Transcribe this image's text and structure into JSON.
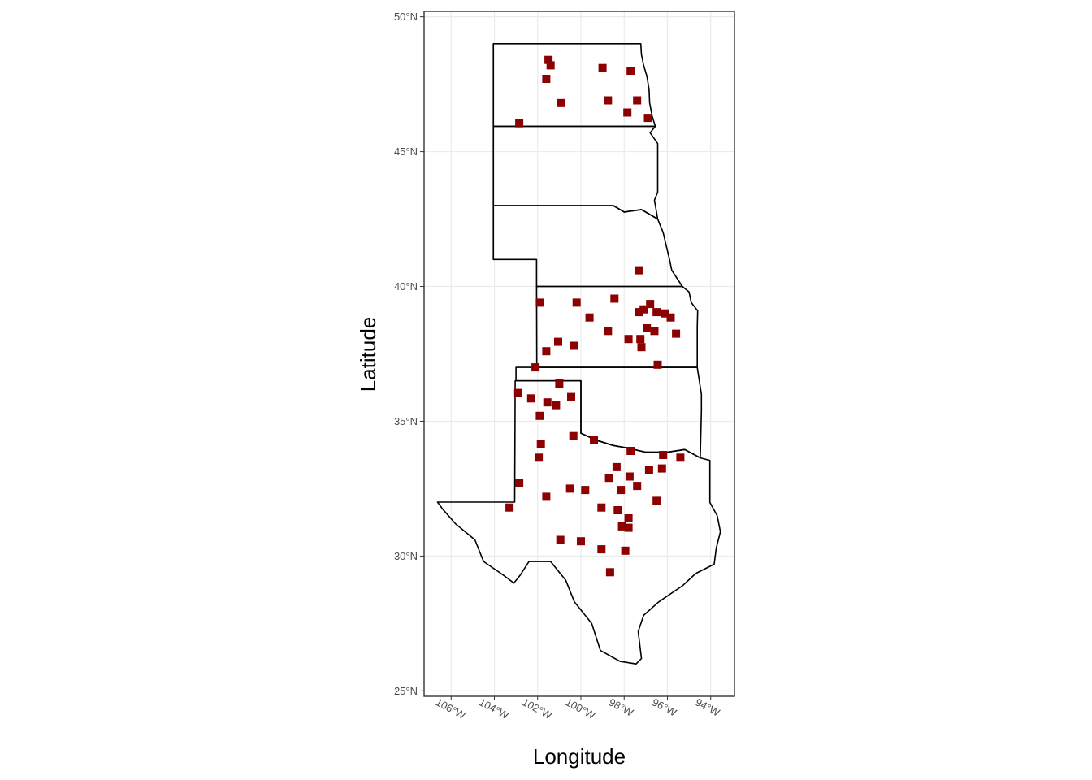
{
  "chart_data": {
    "type": "scatter",
    "xlabel": "Longitude",
    "ylabel": "Latitude",
    "xlim": [
      -107.25,
      -92.9
    ],
    "ylim": [
      24.8,
      50.2
    ],
    "grid": true,
    "x_ticks": [
      {
        "value": -106,
        "label": "106°W"
      },
      {
        "value": -104,
        "label": "104°W"
      },
      {
        "value": -102,
        "label": "102°W"
      },
      {
        "value": -100,
        "label": "100°W"
      },
      {
        "value": -98,
        "label": "98°W"
      },
      {
        "value": -96,
        "label": "96°W"
      },
      {
        "value": -94,
        "label": "94°W"
      }
    ],
    "y_ticks": [
      {
        "value": 25,
        "label": "25°N"
      },
      {
        "value": 30,
        "label": "30°N"
      },
      {
        "value": 35,
        "label": "35°N"
      },
      {
        "value": 40,
        "label": "40°N"
      },
      {
        "value": 45,
        "label": "45°N"
      },
      {
        "value": 50,
        "label": "50°N"
      }
    ],
    "marker": {
      "shape": "square",
      "color": "#8b0000"
    },
    "states": [
      {
        "name": "North Dakota",
        "coords": [
          [
            -104.05,
            49.0
          ],
          [
            -103.0,
            49.0
          ],
          [
            -101.0,
            49.0
          ],
          [
            -99.0,
            49.0
          ],
          [
            -97.23,
            49.0
          ],
          [
            -97.2,
            48.6
          ],
          [
            -97.1,
            48.2
          ],
          [
            -96.95,
            47.8
          ],
          [
            -96.85,
            47.3
          ],
          [
            -96.82,
            46.8
          ],
          [
            -96.7,
            46.3
          ],
          [
            -96.56,
            45.94
          ],
          [
            -98.5,
            45.94
          ],
          [
            -101.0,
            45.94
          ],
          [
            -104.05,
            45.94
          ],
          [
            -104.05,
            49.0
          ]
        ]
      },
      {
        "name": "South Dakota",
        "coords": [
          [
            -104.05,
            45.94
          ],
          [
            -101.0,
            45.94
          ],
          [
            -98.5,
            45.94
          ],
          [
            -96.56,
            45.94
          ],
          [
            -96.8,
            45.7
          ],
          [
            -96.45,
            45.3
          ],
          [
            -96.45,
            44.5
          ],
          [
            -96.45,
            43.5
          ],
          [
            -96.6,
            43.2
          ],
          [
            -96.45,
            42.5
          ],
          [
            -97.2,
            42.85
          ],
          [
            -98.0,
            42.76
          ],
          [
            -98.5,
            43.0
          ],
          [
            -104.05,
            43.0
          ],
          [
            -104.05,
            45.94
          ]
        ]
      },
      {
        "name": "Nebraska",
        "coords": [
          [
            -104.05,
            43.0
          ],
          [
            -98.5,
            43.0
          ],
          [
            -98.0,
            42.76
          ],
          [
            -97.2,
            42.85
          ],
          [
            -96.45,
            42.5
          ],
          [
            -96.2,
            42.0
          ],
          [
            -96.05,
            41.5
          ],
          [
            -95.9,
            41.0
          ],
          [
            -95.8,
            40.6
          ],
          [
            -95.31,
            40.0
          ],
          [
            -97.0,
            40.0
          ],
          [
            -102.05,
            40.0
          ],
          [
            -102.05,
            41.0
          ],
          [
            -104.05,
            41.0
          ],
          [
            -104.05,
            43.0
          ]
        ]
      },
      {
        "name": "Kansas",
        "coords": [
          [
            -102.05,
            40.0
          ],
          [
            -97.0,
            40.0
          ],
          [
            -95.31,
            40.0
          ],
          [
            -95.0,
            39.8
          ],
          [
            -94.9,
            39.4
          ],
          [
            -94.6,
            39.1
          ],
          [
            -94.62,
            38.5
          ],
          [
            -94.62,
            37.0
          ],
          [
            -98.0,
            37.0
          ],
          [
            -102.04,
            37.0
          ],
          [
            -102.05,
            40.0
          ]
        ]
      },
      {
        "name": "Oklahoma",
        "coords": [
          [
            -103.0,
            37.0
          ],
          [
            -102.04,
            37.0
          ],
          [
            -98.0,
            37.0
          ],
          [
            -94.62,
            37.0
          ],
          [
            -94.43,
            36.0
          ],
          [
            -94.43,
            35.4
          ],
          [
            -94.48,
            33.64
          ],
          [
            -95.2,
            33.95
          ],
          [
            -96.0,
            33.85
          ],
          [
            -97.0,
            33.85
          ],
          [
            -97.8,
            34.0
          ],
          [
            -98.5,
            34.1
          ],
          [
            -99.3,
            34.3
          ],
          [
            -100.0,
            34.56
          ],
          [
            -100.0,
            36.5
          ],
          [
            -103.0,
            36.5
          ],
          [
            -103.0,
            37.0
          ]
        ]
      },
      {
        "name": "Texas",
        "coords": [
          [
            -103.0,
            36.5
          ],
          [
            -100.0,
            36.5
          ],
          [
            -100.0,
            34.56
          ],
          [
            -99.3,
            34.3
          ],
          [
            -98.5,
            34.1
          ],
          [
            -97.8,
            34.0
          ],
          [
            -97.0,
            33.85
          ],
          [
            -96.0,
            33.85
          ],
          [
            -95.2,
            33.95
          ],
          [
            -94.48,
            33.64
          ],
          [
            -94.04,
            33.55
          ],
          [
            -94.04,
            31.99
          ],
          [
            -93.7,
            31.5
          ],
          [
            -93.55,
            30.9
          ],
          [
            -93.74,
            30.3
          ],
          [
            -93.84,
            29.7
          ],
          [
            -94.7,
            29.35
          ],
          [
            -95.3,
            28.9
          ],
          [
            -96.4,
            28.3
          ],
          [
            -97.1,
            27.8
          ],
          [
            -97.35,
            27.2
          ],
          [
            -97.2,
            26.2
          ],
          [
            -97.45,
            26.0
          ],
          [
            -98.2,
            26.1
          ],
          [
            -99.1,
            26.5
          ],
          [
            -99.5,
            27.5
          ],
          [
            -100.3,
            28.3
          ],
          [
            -100.7,
            29.1
          ],
          [
            -101.4,
            29.8
          ],
          [
            -102.4,
            29.8
          ],
          [
            -102.8,
            29.3
          ],
          [
            -103.1,
            29.0
          ],
          [
            -103.6,
            29.3
          ],
          [
            -104.5,
            29.8
          ],
          [
            -104.9,
            30.6
          ],
          [
            -105.8,
            31.2
          ],
          [
            -106.4,
            31.75
          ],
          [
            -106.63,
            32.0
          ],
          [
            -103.06,
            32.0
          ],
          [
            -103.04,
            36.5
          ],
          [
            -103.0,
            36.5
          ]
        ]
      }
    ],
    "points": [
      [
        -101.5,
        48.4
      ],
      [
        -101.4,
        48.2
      ],
      [
        -101.6,
        47.7
      ],
      [
        -99.0,
        48.1
      ],
      [
        -97.7,
        48.0
      ],
      [
        -100.9,
        46.8
      ],
      [
        -98.75,
        46.9
      ],
      [
        -97.4,
        46.9
      ],
      [
        -97.85,
        46.45
      ],
      [
        -96.9,
        46.25
      ],
      [
        -102.85,
        46.05
      ],
      [
        -97.3,
        40.6
      ],
      [
        -101.9,
        39.4
      ],
      [
        -100.2,
        39.4
      ],
      [
        -98.45,
        39.55
      ],
      [
        -99.6,
        38.85
      ],
      [
        -97.3,
        39.05
      ],
      [
        -97.1,
        39.15
      ],
      [
        -96.8,
        39.35
      ],
      [
        -96.5,
        39.05
      ],
      [
        -96.1,
        39.0
      ],
      [
        -95.85,
        38.85
      ],
      [
        -95.6,
        38.25
      ],
      [
        -98.75,
        38.35
      ],
      [
        -97.8,
        38.05
      ],
      [
        -97.25,
        38.05
      ],
      [
        -96.95,
        38.45
      ],
      [
        -96.6,
        38.35
      ],
      [
        -101.05,
        37.95
      ],
      [
        -100.3,
        37.8
      ],
      [
        -97.2,
        37.75
      ],
      [
        -101.6,
        37.6
      ],
      [
        -96.45,
        37.1
      ],
      [
        -102.1,
        37.0
      ],
      [
        -101.0,
        36.4
      ],
      [
        -102.9,
        36.05
      ],
      [
        -102.3,
        35.85
      ],
      [
        -101.55,
        35.7
      ],
      [
        -101.15,
        35.6
      ],
      [
        -100.45,
        35.9
      ],
      [
        -101.9,
        35.2
      ],
      [
        -100.35,
        34.45
      ],
      [
        -99.4,
        34.3
      ],
      [
        -101.85,
        34.15
      ],
      [
        -97.7,
        33.9
      ],
      [
        -101.95,
        33.65
      ],
      [
        -96.2,
        33.75
      ],
      [
        -95.4,
        33.65
      ],
      [
        -98.35,
        33.3
      ],
      [
        -96.25,
        33.25
      ],
      [
        -96.85,
        33.2
      ],
      [
        -97.75,
        32.95
      ],
      [
        -98.7,
        32.9
      ],
      [
        -97.4,
        32.6
      ],
      [
        -102.85,
        32.7
      ],
      [
        -100.5,
        32.5
      ],
      [
        -99.8,
        32.45
      ],
      [
        -98.15,
        32.45
      ],
      [
        -101.6,
        32.2
      ],
      [
        -96.5,
        32.05
      ],
      [
        -99.05,
        31.8
      ],
      [
        -98.3,
        31.7
      ],
      [
        -103.3,
        31.8
      ],
      [
        -97.8,
        31.4
      ],
      [
        -97.8,
        31.05
      ],
      [
        -98.1,
        31.1
      ],
      [
        -100.95,
        30.6
      ],
      [
        -100.0,
        30.55
      ],
      [
        -99.05,
        30.25
      ],
      [
        -97.95,
        30.2
      ],
      [
        -98.65,
        29.4
      ]
    ]
  }
}
